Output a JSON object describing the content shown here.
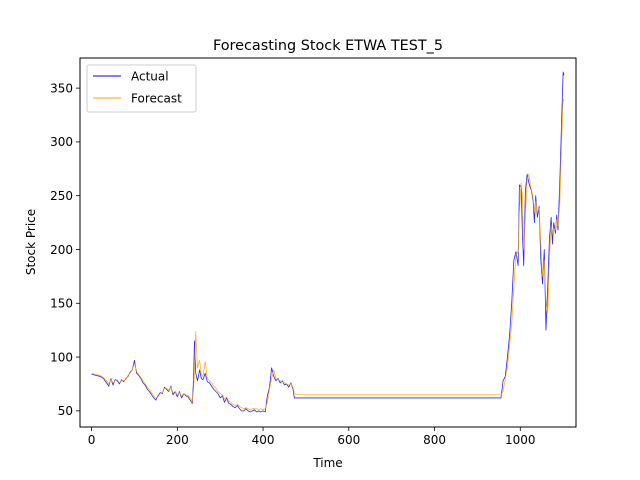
{
  "chart_data": {
    "type": "line",
    "title": "Forecasting Stock ETWA TEST_5",
    "xlabel": "Time",
    "ylabel": "Stock Price",
    "xlim": [
      -27,
      1130
    ],
    "ylim": [
      35,
      378
    ],
    "xticks": [
      0,
      200,
      400,
      600,
      800,
      1000
    ],
    "yticks": [
      50,
      100,
      150,
      200,
      250,
      300,
      350
    ],
    "grid": false,
    "legend_position": "upper-left",
    "series": [
      {
        "name": "Actual",
        "color": "#0000ff",
        "points": [
          [
            0,
            84
          ],
          [
            10,
            83
          ],
          [
            20,
            82
          ],
          [
            28,
            80
          ],
          [
            35,
            76
          ],
          [
            40,
            73
          ],
          [
            45,
            80
          ],
          [
            50,
            74
          ],
          [
            55,
            79
          ],
          [
            60,
            78
          ],
          [
            65,
            75
          ],
          [
            70,
            79
          ],
          [
            75,
            77
          ],
          [
            80,
            80
          ],
          [
            85,
            82
          ],
          [
            90,
            86
          ],
          [
            95,
            88
          ],
          [
            100,
            97
          ],
          [
            105,
            85
          ],
          [
            110,
            83
          ],
          [
            115,
            80
          ],
          [
            120,
            76
          ],
          [
            125,
            74
          ],
          [
            130,
            70
          ],
          [
            135,
            68
          ],
          [
            140,
            65
          ],
          [
            145,
            62
          ],
          [
            150,
            60
          ],
          [
            155,
            64
          ],
          [
            160,
            67
          ],
          [
            165,
            66
          ],
          [
            170,
            72
          ],
          [
            175,
            70
          ],
          [
            180,
            68
          ],
          [
            185,
            73
          ],
          [
            190,
            65
          ],
          [
            195,
            68
          ],
          [
            200,
            63
          ],
          [
            205,
            68
          ],
          [
            210,
            62
          ],
          [
            215,
            66
          ],
          [
            220,
            64
          ],
          [
            225,
            63
          ],
          [
            230,
            60
          ],
          [
            235,
            57
          ],
          [
            238,
            80
          ],
          [
            240,
            115
          ],
          [
            243,
            85
          ],
          [
            247,
            78
          ],
          [
            252,
            88
          ],
          [
            256,
            80
          ],
          [
            260,
            79
          ],
          [
            265,
            85
          ],
          [
            270,
            77
          ],
          [
            275,
            76
          ],
          [
            280,
            73
          ],
          [
            285,
            70
          ],
          [
            290,
            68
          ],
          [
            295,
            66
          ],
          [
            300,
            62
          ],
          [
            305,
            64
          ],
          [
            310,
            58
          ],
          [
            315,
            62
          ],
          [
            320,
            57
          ],
          [
            325,
            56
          ],
          [
            330,
            54
          ],
          [
            335,
            53
          ],
          [
            340,
            55
          ],
          [
            345,
            52
          ],
          [
            350,
            50
          ],
          [
            355,
            50
          ],
          [
            360,
            52
          ],
          [
            365,
            50
          ],
          [
            370,
            49
          ],
          [
            375,
            50
          ],
          [
            380,
            51
          ],
          [
            385,
            49
          ],
          [
            390,
            50
          ],
          [
            395,
            49
          ],
          [
            400,
            50
          ],
          [
            405,
            49
          ],
          [
            410,
            64
          ],
          [
            415,
            72
          ],
          [
            420,
            90
          ],
          [
            425,
            82
          ],
          [
            430,
            78
          ],
          [
            435,
            80
          ],
          [
            440,
            76
          ],
          [
            445,
            78
          ],
          [
            450,
            74
          ],
          [
            455,
            75
          ],
          [
            460,
            72
          ],
          [
            465,
            76
          ],
          [
            470,
            70
          ],
          [
            473,
            62
          ],
          [
            480,
            62
          ],
          [
            600,
            62
          ],
          [
            800,
            62
          ],
          [
            955,
            62
          ],
          [
            960,
            78
          ],
          [
            965,
            82
          ],
          [
            970,
            100
          ],
          [
            975,
            120
          ],
          [
            980,
            150
          ],
          [
            985,
            190
          ],
          [
            990,
            198
          ],
          [
            995,
            185
          ],
          [
            998,
            260
          ],
          [
            1002,
            258
          ],
          [
            1005,
            215
          ],
          [
            1008,
            185
          ],
          [
            1012,
            255
          ],
          [
            1016,
            270
          ],
          [
            1020,
            262
          ],
          [
            1023,
            258
          ],
          [
            1026,
            255
          ],
          [
            1030,
            245
          ],
          [
            1033,
            225
          ],
          [
            1036,
            250
          ],
          [
            1040,
            230
          ],
          [
            1044,
            240
          ],
          [
            1048,
            190
          ],
          [
            1052,
            168
          ],
          [
            1056,
            200
          ],
          [
            1060,
            125
          ],
          [
            1064,
            165
          ],
          [
            1068,
            210
          ],
          [
            1072,
            230
          ],
          [
            1075,
            205
          ],
          [
            1078,
            225
          ],
          [
            1082,
            215
          ],
          [
            1085,
            232
          ],
          [
            1088,
            218
          ],
          [
            1092,
            260
          ],
          [
            1095,
            300
          ],
          [
            1098,
            340
          ],
          [
            1100,
            365
          ],
          [
            1102,
            362
          ]
        ]
      },
      {
        "name": "Forecast",
        "color": "#ffa500",
        "points": [
          [
            0,
            85
          ],
          [
            10,
            84
          ],
          [
            20,
            83
          ],
          [
            28,
            81
          ],
          [
            35,
            78
          ],
          [
            40,
            75
          ],
          [
            45,
            79
          ],
          [
            50,
            76
          ],
          [
            55,
            78
          ],
          [
            60,
            79
          ],
          [
            65,
            76
          ],
          [
            70,
            78
          ],
          [
            75,
            78
          ],
          [
            80,
            79
          ],
          [
            85,
            83
          ],
          [
            90,
            85
          ],
          [
            95,
            88
          ],
          [
            100,
            94
          ],
          [
            105,
            87
          ],
          [
            110,
            84
          ],
          [
            115,
            81
          ],
          [
            120,
            78
          ],
          [
            125,
            75
          ],
          [
            130,
            72
          ],
          [
            135,
            70
          ],
          [
            140,
            67
          ],
          [
            145,
            64
          ],
          [
            150,
            62
          ],
          [
            155,
            63
          ],
          [
            160,
            66
          ],
          [
            165,
            67
          ],
          [
            170,
            71
          ],
          [
            175,
            71
          ],
          [
            180,
            69
          ],
          [
            185,
            72
          ],
          [
            190,
            67
          ],
          [
            195,
            68
          ],
          [
            200,
            65
          ],
          [
            205,
            67
          ],
          [
            210,
            64
          ],
          [
            215,
            66
          ],
          [
            220,
            65
          ],
          [
            225,
            64
          ],
          [
            230,
            62
          ],
          [
            235,
            59
          ],
          [
            238,
            70
          ],
          [
            240,
            85
          ],
          [
            243,
            124
          ],
          [
            247,
            90
          ],
          [
            252,
            97
          ],
          [
            256,
            84
          ],
          [
            260,
            82
          ],
          [
            265,
            96
          ],
          [
            270,
            80
          ],
          [
            275,
            78
          ],
          [
            280,
            76
          ],
          [
            285,
            73
          ],
          [
            290,
            71
          ],
          [
            295,
            68
          ],
          [
            300,
            66
          ],
          [
            305,
            65
          ],
          [
            310,
            61
          ],
          [
            315,
            63
          ],
          [
            320,
            59
          ],
          [
            325,
            58
          ],
          [
            330,
            56
          ],
          [
            335,
            55
          ],
          [
            340,
            56
          ],
          [
            345,
            54
          ],
          [
            350,
            53
          ],
          [
            355,
            52
          ],
          [
            360,
            53
          ],
          [
            365,
            52
          ],
          [
            370,
            51
          ],
          [
            375,
            52
          ],
          [
            380,
            52
          ],
          [
            385,
            52
          ],
          [
            390,
            51
          ],
          [
            395,
            52
          ],
          [
            400,
            51
          ],
          [
            405,
            52
          ],
          [
            410,
            58
          ],
          [
            415,
            70
          ],
          [
            420,
            80
          ],
          [
            425,
            88
          ],
          [
            430,
            80
          ],
          [
            435,
            79
          ],
          [
            440,
            78
          ],
          [
            445,
            77
          ],
          [
            450,
            76
          ],
          [
            455,
            75
          ],
          [
            460,
            74
          ],
          [
            465,
            75
          ],
          [
            470,
            72
          ],
          [
            473,
            66
          ],
          [
            480,
            65
          ],
          [
            600,
            65
          ],
          [
            800,
            65
          ],
          [
            955,
            65
          ],
          [
            960,
            68
          ],
          [
            965,
            80
          ],
          [
            970,
            90
          ],
          [
            975,
            110
          ],
          [
            980,
            130
          ],
          [
            985,
            165
          ],
          [
            990,
            195
          ],
          [
            995,
            198
          ],
          [
            998,
            235
          ],
          [
            1002,
            262
          ],
          [
            1005,
            250
          ],
          [
            1008,
            200
          ],
          [
            1012,
            230
          ],
          [
            1016,
            265
          ],
          [
            1020,
            270
          ],
          [
            1023,
            262
          ],
          [
            1026,
            256
          ],
          [
            1030,
            248
          ],
          [
            1033,
            235
          ],
          [
            1036,
            245
          ],
          [
            1040,
            235
          ],
          [
            1044,
            238
          ],
          [
            1048,
            205
          ],
          [
            1052,
            175
          ],
          [
            1056,
            190
          ],
          [
            1060,
            150
          ],
          [
            1064,
            140
          ],
          [
            1068,
            190
          ],
          [
            1072,
            222
          ],
          [
            1075,
            215
          ],
          [
            1078,
            220
          ],
          [
            1082,
            218
          ],
          [
            1085,
            228
          ],
          [
            1088,
            222
          ],
          [
            1092,
            240
          ],
          [
            1095,
            280
          ],
          [
            1098,
            318
          ],
          [
            1100,
            340
          ],
          [
            1102,
            338
          ]
        ]
      }
    ]
  }
}
